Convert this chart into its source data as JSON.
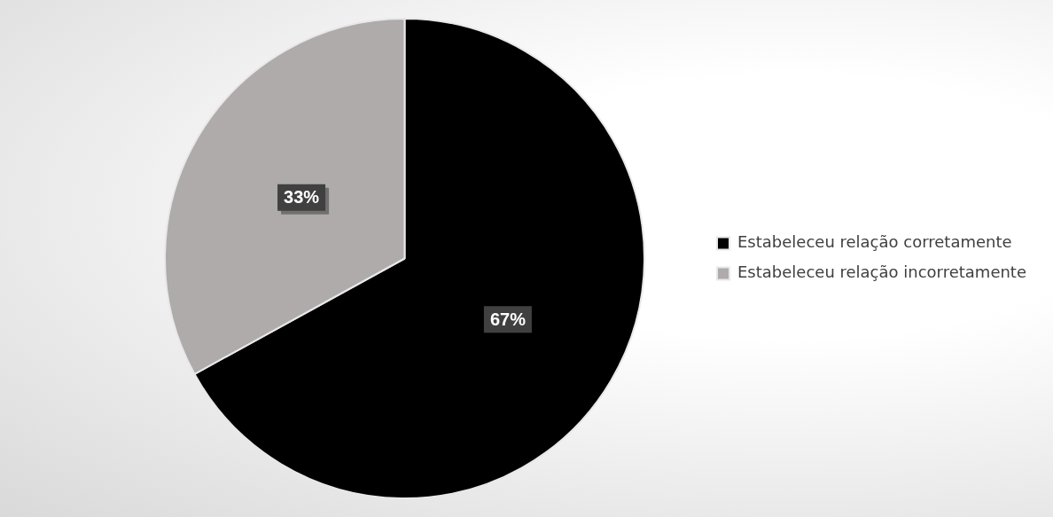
{
  "chart_data": {
    "type": "pie",
    "categories": [
      "Estabeleceu relação corretamente",
      "Estabeleceu relação incorretamente"
    ],
    "values": [
      67,
      33
    ],
    "colors": [
      "#000000",
      "#afabab"
    ],
    "value_labels": [
      "67%",
      "33%"
    ],
    "legend": "right"
  }
}
